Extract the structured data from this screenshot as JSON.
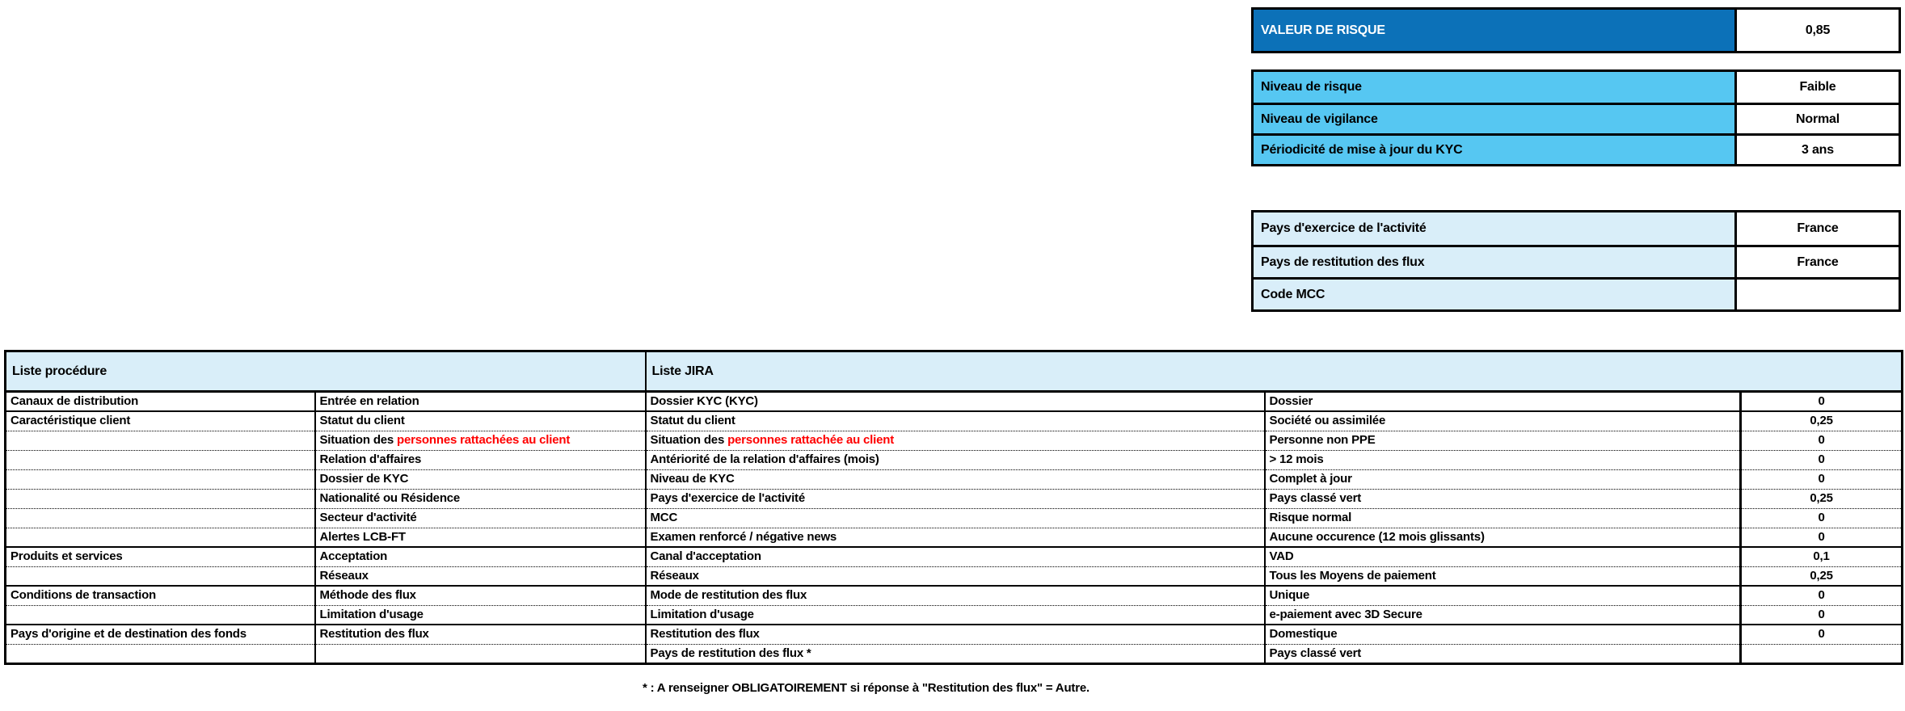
{
  "colors": {
    "dark_blue": "#0C71B8",
    "sky_blue": "#56C7F2",
    "pale_blue": "#D9EEF9",
    "red_text": "#FF0000",
    "border": "#000000"
  },
  "risk_panel": {
    "label": "VALEUR DE RISQUE",
    "value": "0,85"
  },
  "level_panel": {
    "rows": [
      {
        "label": "Niveau de risque",
        "value": "Faible"
      },
      {
        "label": "Niveau de vigilance",
        "value": "Normal"
      },
      {
        "label": "Périodicité de mise à jour du KYC",
        "value": "3 ans"
      }
    ]
  },
  "country_panel": {
    "rows": [
      {
        "label": "Pays d'exercice de l'activité",
        "value": "France"
      },
      {
        "label": "Pays de restitution des flux",
        "value": "France"
      },
      {
        "label": "Code MCC",
        "value": ""
      }
    ]
  },
  "main_table": {
    "header_procedure": "Liste procédure",
    "header_jira": "Liste JIRA",
    "rows": [
      {
        "category": "Canaux de distribution",
        "procedure": "Entrée en relation",
        "jira": "Dossier KYC (KYC)",
        "value": "Dossier",
        "score": "0",
        "group_start": true
      },
      {
        "category": "Caractéristique client",
        "procedure": "Statut du client",
        "jira": "Statut du client",
        "value": "Société ou assimilée",
        "score": "0,25",
        "group_start": true
      },
      {
        "category": "",
        "procedure": "Situation des ",
        "procedure_red": "personnes rattachées au client",
        "jira": "Situation des ",
        "jira_red": "personnes rattachée au client",
        "value": "Personne non PPE",
        "score": "0",
        "group_start": false
      },
      {
        "category": "",
        "procedure": "Relation d'affaires",
        "jira": "Antériorité de la relation d'affaires (mois)",
        "value": "> 12 mois",
        "score": "0",
        "group_start": false
      },
      {
        "category": "",
        "procedure": "Dossier de KYC",
        "jira": "Niveau de KYC",
        "value": "Complet à jour",
        "score": "0",
        "group_start": false
      },
      {
        "category": "",
        "procedure": "Nationalité ou Résidence",
        "jira": "Pays d'exercice de l'activité",
        "value": "Pays classé vert",
        "score": "0,25",
        "group_start": false
      },
      {
        "category": "",
        "procedure": "Secteur d'activité",
        "jira": "MCC",
        "value": "Risque normal",
        "score": "0",
        "group_start": false
      },
      {
        "category": "",
        "procedure": "Alertes LCB-FT",
        "jira": "Examen renforcé / négative news",
        "value": "Aucune occurence (12 mois glissants)",
        "score": "0",
        "group_start": false
      },
      {
        "category": "Produits et services",
        "procedure": "Acceptation",
        "jira": "Canal d'acceptation",
        "value": "VAD",
        "score": "0,1",
        "group_start": true
      },
      {
        "category": "",
        "procedure": "Réseaux",
        "jira": "Réseaux",
        "value": "Tous les Moyens de paiement",
        "score": "0,25",
        "group_start": false
      },
      {
        "category": "Conditions de transaction",
        "procedure": "Méthode des flux",
        "jira": "Mode de restitution des flux",
        "value": "Unique",
        "score": "0",
        "group_start": true
      },
      {
        "category": "",
        "procedure": "Limitation d'usage",
        "jira": "Limitation d'usage",
        "value": "e-paiement avec 3D Secure",
        "score": "0",
        "group_start": false
      },
      {
        "category": "Pays d'origine et de destination des fonds",
        "procedure": "Restitution des flux",
        "jira": "Restitution des flux",
        "value": "Domestique",
        "score": "0",
        "group_start": true
      },
      {
        "category": "",
        "procedure": "",
        "jira": "Pays de restitution des flux *",
        "value": "Pays classé vert",
        "score": "",
        "group_start": false
      }
    ]
  },
  "footnote": "* : A renseigner OBLIGATOIREMENT si réponse à \"Restitution des flux\" = Autre."
}
